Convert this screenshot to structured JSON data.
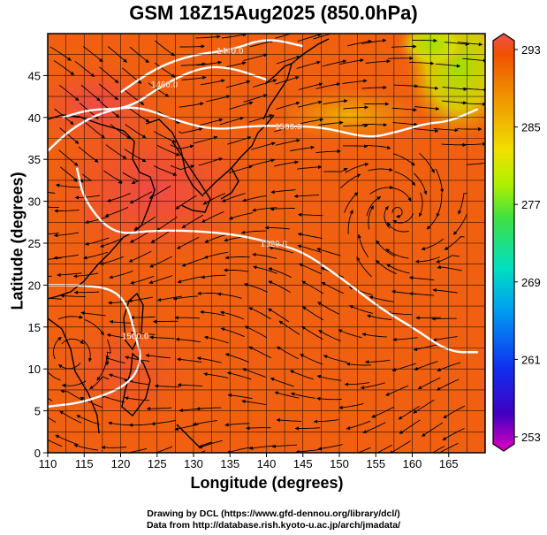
{
  "title": "GSM 18Z15Aug2025 (850.0hPa)",
  "x_axis_label": "Longitude (degrees)",
  "y_axis_label": "Latitude  (degrees)",
  "credits": [
    "Drawing by DCL (https://www.gfd-dennou.org/library/dcl/)",
    "Data from http://database.rish.kyoto-u.ac.jp/arch/jmadata/"
  ],
  "chart_data": {
    "type": "heatmap",
    "title": "GSM 18Z15Aug2025 (850.0hPa)",
    "xlabel": "Longitude (degrees)",
    "ylabel": "Latitude  (degrees)",
    "xlim": [
      110,
      170
    ],
    "ylim": [
      0,
      50
    ],
    "x_ticks": [
      110,
      115,
      120,
      125,
      130,
      135,
      140,
      145,
      150,
      155,
      160,
      165
    ],
    "y_ticks": [
      0,
      5,
      10,
      15,
      20,
      25,
      30,
      35,
      40,
      45
    ],
    "grid": true,
    "colorbar": {
      "ticks": [
        293,
        285,
        277,
        269,
        261,
        253
      ],
      "min": 253,
      "max": 293,
      "colors": [
        "#e000c0",
        "#4000c0",
        "#1030f0",
        "#00a0f0",
        "#00e0c0",
        "#40e040",
        "#b0f000",
        "#f0e000",
        "#f0b000",
        "#f08000",
        "#f05000",
        "#f05050"
      ]
    },
    "contours": [
      {
        "label": "1440.0",
        "color": "#ffffff",
        "points": [
          [
            120,
            43
          ],
          [
            125,
            46
          ],
          [
            130,
            47.5
          ],
          [
            135,
            48
          ],
          [
            140,
            49.5
          ],
          [
            145,
            48.5
          ]
        ]
      },
      {
        "label": "1460.0",
        "color": "#ffffff",
        "points": [
          [
            112,
            40
          ],
          [
            116,
            41
          ],
          [
            121,
            41
          ],
          [
            126,
            44
          ],
          [
            131,
            46
          ],
          [
            135,
            46
          ],
          [
            140,
            44.5
          ]
        ]
      },
      {
        "label": "1500.0",
        "color": "#ffffff",
        "points": [
          [
            110,
            36
          ],
          [
            113,
            38.5
          ],
          [
            117,
            40.5
          ],
          [
            122,
            41.5
          ],
          [
            128,
            39.5
          ],
          [
            133,
            38.5
          ],
          [
            138,
            39
          ],
          [
            143,
            39
          ],
          [
            148,
            38.8
          ],
          [
            154,
            37.5
          ],
          [
            158,
            38.3
          ],
          [
            162,
            39.3
          ],
          [
            165,
            39.5
          ],
          [
            169,
            41
          ]
        ]
      },
      {
        "label": "1520.0",
        "color": "#ffffff",
        "points": [
          [
            114,
            34
          ],
          [
            115,
            30
          ],
          [
            119,
            26
          ],
          [
            124,
            26.5
          ],
          [
            130,
            26.5
          ],
          [
            136,
            26
          ],
          [
            141,
            25
          ],
          [
            145,
            24
          ],
          [
            150,
            21
          ],
          [
            156,
            17
          ],
          [
            160,
            15
          ],
          [
            165,
            12
          ],
          [
            169,
            12
          ]
        ]
      },
      {
        "label": "1500.0",
        "color": "#ffffff",
        "points": [
          [
            110,
            20
          ],
          [
            115,
            20
          ],
          [
            119,
            19.5
          ],
          [
            121,
            17.5
          ],
          [
            122,
            14
          ],
          [
            123,
            11
          ],
          [
            121,
            8
          ],
          [
            115,
            6
          ],
          [
            110,
            5.5
          ]
        ]
      }
    ],
    "wind_field": "streamlines"
  }
}
